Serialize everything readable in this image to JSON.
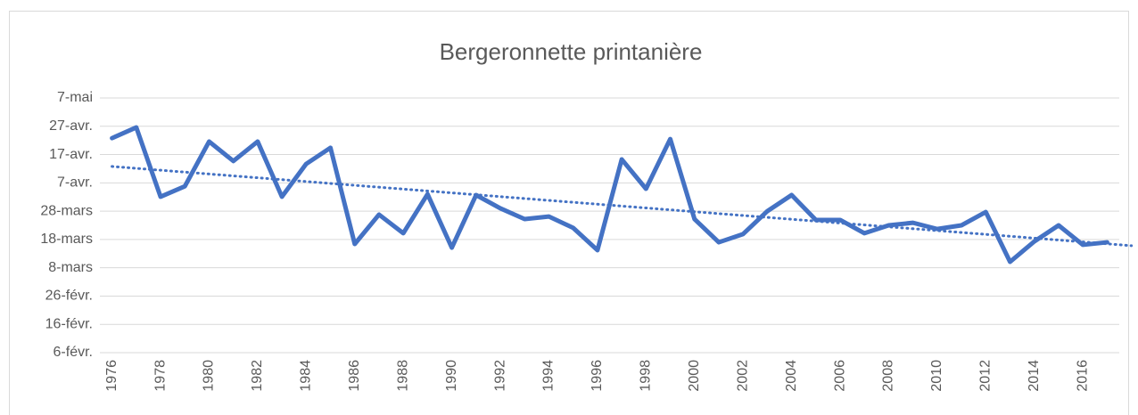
{
  "chart_data": {
    "type": "line",
    "title": "Bergeronnette printanière",
    "categories": [
      "1976",
      null,
      "1978",
      null,
      "1980",
      null,
      "1982",
      null,
      "1984",
      null,
      "1986",
      null,
      "1988",
      null,
      "1990",
      null,
      "1992",
      null,
      "1994",
      null,
      "1996",
      null,
      "1998",
      null,
      "2000",
      null,
      "2002",
      null,
      "2004",
      null,
      "2006",
      null,
      "2008",
      null,
      "2010",
      null,
      "2012",
      null,
      "2014",
      null,
      "2016",
      null
    ],
    "values": [
      112.8,
      116.6,
      92.1,
      95.8,
      111.6,
      104.7,
      111.6,
      92.1,
      103.7,
      109.4,
      75.4,
      85.8,
      79.2,
      93.0,
      74.1,
      92.7,
      88.0,
      84.2,
      85.1,
      81.1,
      73.2,
      105.3,
      94.9,
      112.5,
      84.2,
      76.0,
      78.9,
      87.0,
      92.7,
      83.9,
      83.9,
      79.2,
      82.0,
      82.9,
      80.7,
      82.0,
      86.7,
      69.1,
      76.3,
      82.0,
      75.1,
      76.0
    ],
    "color": "#4472c4",
    "trendline": [
      102.8,
      74.8
    ],
    "ylim": [
      37,
      127
    ],
    "yticks": [
      {
        "value": 37,
        "label": "6-févr."
      },
      {
        "value": 47,
        "label": "16-févr."
      },
      {
        "value": 57,
        "label": "26-févr."
      },
      {
        "value": 67,
        "label": "8-mars"
      },
      {
        "value": 77,
        "label": "18-mars"
      },
      {
        "value": 87,
        "label": "28-mars"
      },
      {
        "value": 97,
        "label": "7-avr."
      },
      {
        "value": 107,
        "label": "17-avr."
      },
      {
        "value": 117,
        "label": "27-avr."
      },
      {
        "value": 127,
        "label": "7-mai"
      }
    ],
    "grid": true
  }
}
